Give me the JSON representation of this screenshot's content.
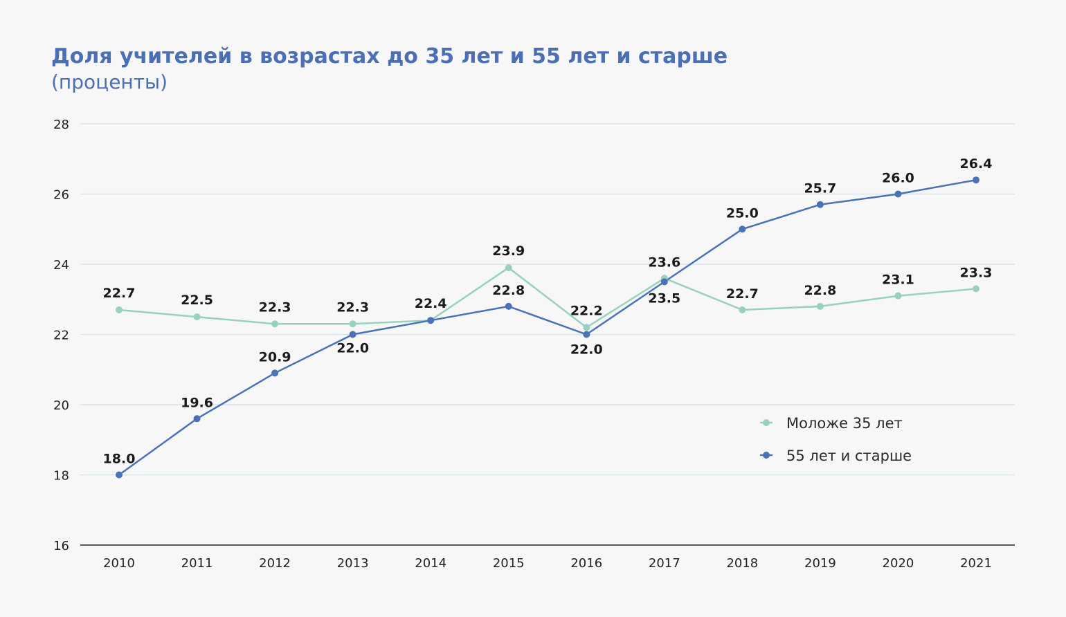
{
  "chart_data": {
    "type": "line",
    "title": "Доля учителей в возрастах до 35 лет и 55 лет и старше",
    "subtitle": "(проценты)",
    "categories": [
      "2010",
      "2011",
      "2012",
      "2013",
      "2014",
      "2015",
      "2016",
      "2017",
      "2018",
      "2019",
      "2020",
      "2021"
    ],
    "ylim": [
      16,
      28
    ],
    "yticks": [
      16,
      18,
      20,
      22,
      24,
      26,
      28
    ],
    "grid": true,
    "legend_position": "right",
    "series": [
      {
        "name": "Моложе 35 лет",
        "color": "#96d2bd",
        "values": [
          22.7,
          22.5,
          22.3,
          22.3,
          22.4,
          23.9,
          22.2,
          23.6,
          22.7,
          22.8,
          23.1,
          23.3
        ],
        "labels": [
          "22.7",
          "22.5",
          "22.3",
          "22.3",
          "22.4",
          "23.9",
          "22.2",
          "23.6",
          "22.7",
          "22.8",
          "23.1",
          "23.3"
        ]
      },
      {
        "name": "55 лет и старше",
        "color": "#4a72b8",
        "values": [
          18.0,
          19.6,
          20.9,
          22.0,
          22.4,
          22.8,
          22.0,
          23.5,
          25.0,
          25.7,
          26.0,
          26.4
        ],
        "labels": [
          "18.0",
          "19.6",
          "20.9",
          "22.0",
          "",
          "22.8",
          "22.0",
          "23.5",
          "25.0",
          "25.7",
          "26.0",
          "26.4"
        ]
      }
    ]
  }
}
